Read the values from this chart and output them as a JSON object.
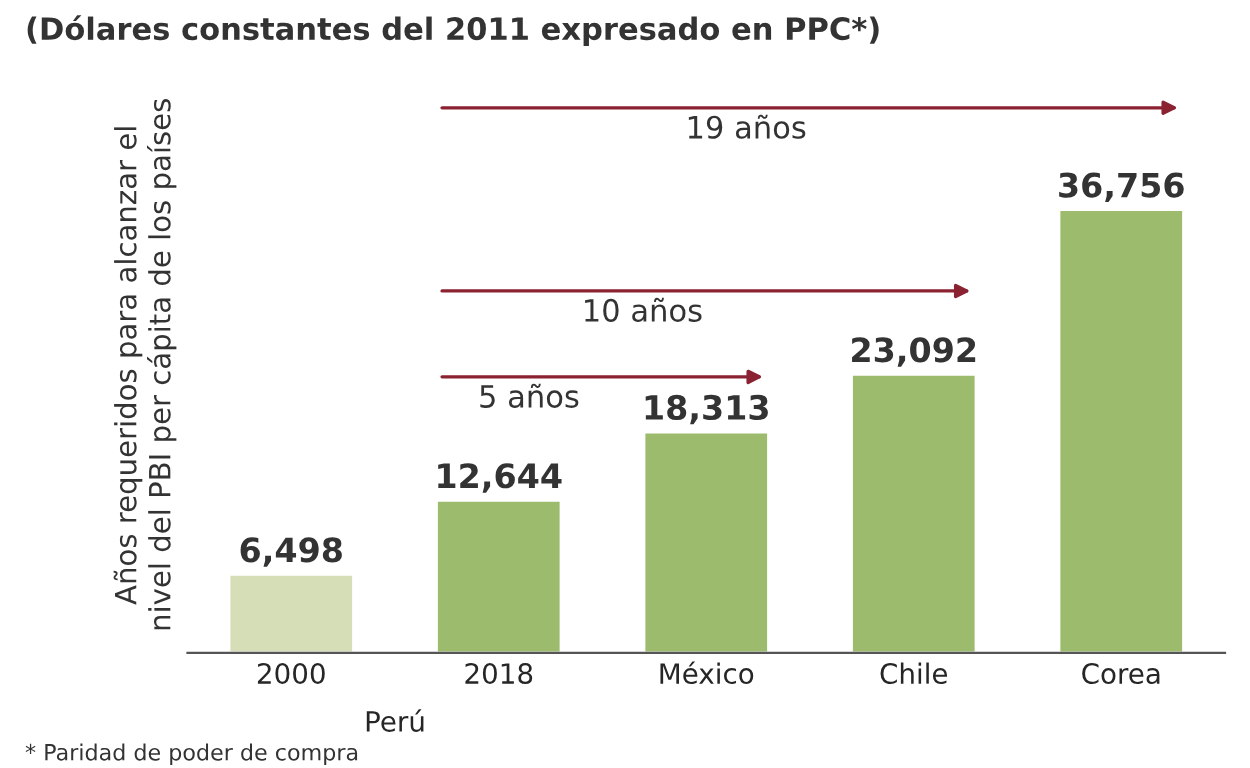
{
  "chart_data": {
    "type": "bar",
    "title": "(Dólares constantes del 2011 expresado en PPC*)",
    "ylabel": "Años requeridos para alcanzar el\nnivel del PBI per cápita de los países",
    "categories": [
      "2000",
      "2018",
      "México",
      "Chile",
      "Corea"
    ],
    "values": [
      6498,
      12644,
      18313,
      23092,
      36756
    ],
    "value_labels": [
      "6,498",
      "12,644",
      "18,313",
      "23,092",
      "36,756"
    ],
    "colors": [
      "#d6deb8",
      "#9dbb6c",
      "#9dbb6c",
      "#9dbb6c",
      "#9dbb6c"
    ],
    "annotations": [
      "5 años",
      "10 años",
      "19 años",
      "Perú",
      "* Paridad de poder de compra"
    ],
    "tick_labels": "x",
    "grid": false
  }
}
